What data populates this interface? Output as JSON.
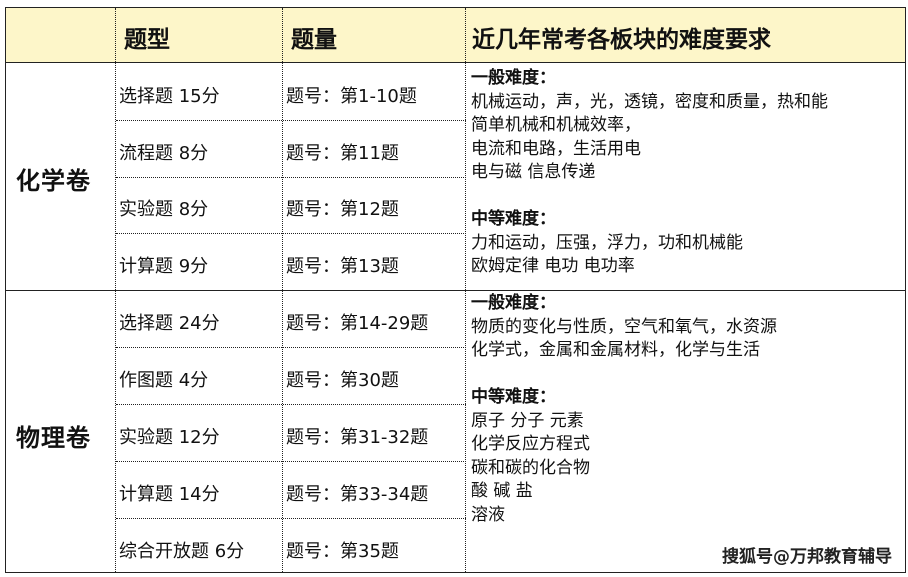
{
  "header": {
    "col1": "",
    "col2": "题型",
    "col3": "题量",
    "col4": "近几年常考各板块的难度要求"
  },
  "sections": [
    {
      "name": "化学卷",
      "rows": [
        {
          "type": "选择题 15分",
          "count": "题号：第1-10题"
        },
        {
          "type": "流程题 8分",
          "count": "题号：第11题"
        },
        {
          "type": "实验题 8分",
          "count": "题号：第12题"
        },
        {
          "type": "计算题 9分",
          "count": "题号：第13题"
        }
      ],
      "general_label": "一般难度：",
      "general": [
        "机械运动，声，光，透镜，密度和质量，热和能",
        "简单机械和机械效率，",
        "电流和电路，生活用电",
        "电与磁  信息传递"
      ],
      "medium_label": "中等难度：",
      "medium": [
        "力和运动，压强，浮力，功和机械能",
        "欧姆定律  电功  电功率"
      ]
    },
    {
      "name": "物理卷",
      "rows": [
        {
          "type": "选择题 24分",
          "count": "题号：第14-29题"
        },
        {
          "type": "作图题 4分",
          "count": "题号：第30题"
        },
        {
          "type": "实验题 12分",
          "count": "题号：第31-32题"
        },
        {
          "type": "计算题 14分",
          "count": "题号：第33-34题"
        },
        {
          "type": "综合开放题 6分",
          "count": "题号：第35题"
        }
      ],
      "general_label": "一般难度：",
      "general": [
        "物质的变化与性质，空气和氧气，水资源",
        "化学式，金属和金属材料，化学与生活"
      ],
      "medium_label": "中等难度：",
      "medium": [
        "原子  分子  元素",
        "化学反应方程式",
        "碳和碳的化合物",
        "酸  碱  盐",
        "溶液"
      ]
    }
  ],
  "watermark": "搜狐号@万邦教育辅导"
}
